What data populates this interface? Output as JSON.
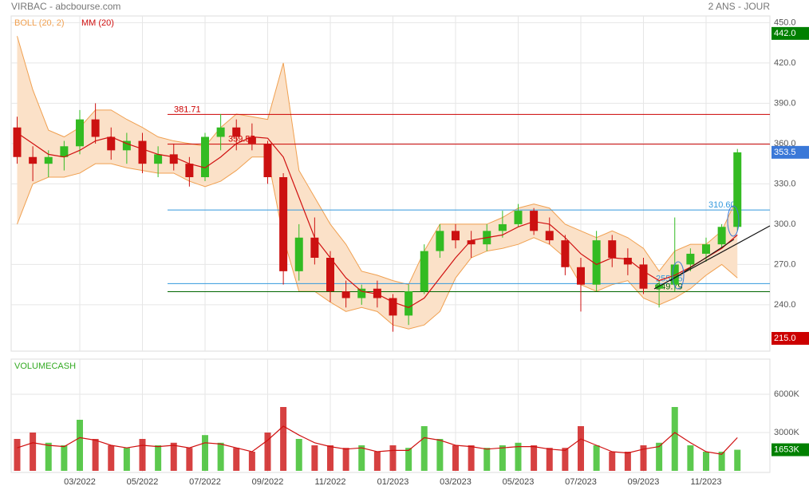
{
  "header": {
    "title": "VIRBAC - abcbourse.com",
    "period": "2 ANS - JOUR"
  },
  "chart_data": [
    {
      "type": "candlestick",
      "open": [
        372,
        350,
        345,
        350,
        358,
        378,
        365,
        355,
        362,
        345,
        352,
        345,
        335,
        365,
        372,
        365,
        360,
        335,
        265,
        290,
        275,
        250,
        245,
        252,
        245,
        232,
        250,
        280,
        295,
        288,
        285,
        295,
        300,
        310,
        295,
        288,
        268,
        255,
        288,
        275,
        270,
        252,
        255,
        270,
        278,
        285,
        298
      ],
      "high": [
        380,
        358,
        355,
        362,
        385,
        390,
        372,
        368,
        368,
        358,
        360,
        350,
        368,
        382,
        378,
        375,
        362,
        338,
        300,
        305,
        280,
        258,
        255,
        258,
        248,
        255,
        285,
        300,
        300,
        295,
        300,
        310,
        315,
        312,
        305,
        292,
        275,
        295,
        292,
        282,
        275,
        258,
        305,
        282,
        290,
        300,
        356
      ],
      "low": [
        345,
        332,
        335,
        340,
        352,
        360,
        348,
        345,
        338,
        335,
        340,
        328,
        332,
        355,
        355,
        355,
        330,
        255,
        258,
        270,
        242,
        238,
        240,
        238,
        220,
        225,
        248,
        275,
        282,
        275,
        280,
        290,
        298,
        292,
        285,
        262,
        235,
        250,
        268,
        262,
        248,
        238,
        250,
        265,
        272,
        282,
        295
      ],
      "close": [
        350,
        345,
        350,
        358,
        378,
        365,
        355,
        362,
        345,
        352,
        345,
        335,
        365,
        372,
        365,
        360,
        335,
        265,
        290,
        275,
        250,
        245,
        252,
        245,
        232,
        250,
        280,
        295,
        288,
        285,
        295,
        300,
        310,
        295,
        288,
        268,
        255,
        288,
        275,
        270,
        252,
        255,
        270,
        278,
        285,
        298,
        353.5
      ],
      "up_color": "#33bb22",
      "down_color": "#cc1111",
      "bollinger": {
        "name": "BOLL (20, 2)",
        "color": "#f0a050",
        "fill": "#fbe1c8",
        "upper": [
          440,
          400,
          370,
          365,
          372,
          385,
          385,
          378,
          372,
          365,
          362,
          360,
          358,
          372,
          382,
          380,
          378,
          420,
          340,
          320,
          300,
          285,
          265,
          262,
          258,
          255,
          280,
          300,
          300,
          300,
          300,
          305,
          312,
          315,
          312,
          300,
          295,
          290,
          295,
          290,
          282,
          265,
          280,
          285,
          285,
          295,
          320
        ],
        "lower": [
          300,
          330,
          335,
          335,
          338,
          345,
          345,
          342,
          340,
          338,
          338,
          332,
          328,
          332,
          340,
          350,
          350,
          290,
          250,
          250,
          242,
          235,
          238,
          235,
          225,
          222,
          225,
          235,
          260,
          275,
          280,
          282,
          285,
          290,
          285,
          275,
          255,
          250,
          255,
          258,
          245,
          240,
          245,
          252,
          262,
          270,
          260
        ]
      },
      "ma": {
        "name": "MM (20)",
        "color": "#d01010",
        "values": [
          368,
          360,
          352,
          350,
          355,
          362,
          365,
          360,
          356,
          352,
          350,
          345,
          342,
          350,
          360,
          365,
          364,
          350,
          320,
          290,
          275,
          260,
          250,
          248,
          242,
          238,
          245,
          260,
          275,
          288,
          290,
          292,
          298,
          302,
          300,
          290,
          278,
          270,
          275,
          274,
          265,
          258,
          262,
          268,
          275,
          282,
          292
        ]
      },
      "levels": [
        {
          "value": 381.71,
          "color": "#cc0000"
        },
        {
          "value": 359.57,
          "color": "#cc0000"
        },
        {
          "value": 310.6,
          "label": "310.60",
          "color": "#3399dd"
        },
        {
          "value": 255.75,
          "color": "#3399dd"
        },
        {
          "value": 249.79,
          "color": "#006600"
        }
      ],
      "price_tags": [
        {
          "value": 442,
          "label": "442.0",
          "color": "#008000"
        },
        {
          "value": 353.5,
          "label": "353.5",
          "color": "#3a78d8"
        },
        {
          "value": 215,
          "label": "215.0",
          "color": "#cc0000"
        }
      ],
      "ylim": [
        205.5,
        455
      ],
      "yticks": [
        {
          "value": 450,
          "label": "450.0"
        },
        {
          "value": 420,
          "label": "420.0"
        },
        {
          "value": 390,
          "label": "390.0"
        },
        {
          "value": 360,
          "label": "360.0"
        },
        {
          "value": 330,
          "label": "330.0"
        },
        {
          "value": 300,
          "label": "300.0"
        },
        {
          "value": 270,
          "label": "270.0"
        },
        {
          "value": 240,
          "label": "240.0"
        }
      ],
      "grid": true
    },
    {
      "type": "bar",
      "title": "VOLUMECASH",
      "categories": [
        null,
        null,
        null,
        null,
        "03/2022",
        null,
        null,
        null,
        "05/2022",
        null,
        null,
        null,
        "07/2022",
        null,
        null,
        null,
        "09/2022",
        null,
        null,
        null,
        "11/2022",
        null,
        null,
        null,
        "01/2023",
        null,
        null,
        null,
        "03/2023",
        null,
        null,
        null,
        "05/2023",
        null,
        null,
        null,
        "07/2023",
        null,
        null,
        null,
        "09/2023",
        null,
        null,
        null,
        "11/2023",
        null,
        null
      ],
      "values": [
        2500,
        3000,
        2200,
        2000,
        4000,
        2500,
        2000,
        1800,
        2500,
        2000,
        2200,
        1800,
        2800,
        2200,
        1800,
        1500,
        3000,
        5000,
        2500,
        2000,
        2000,
        1800,
        2000,
        1500,
        2000,
        1800,
        3500,
        2500,
        2000,
        2000,
        1800,
        2000,
        2200,
        2000,
        1800,
        1800,
        3500,
        2000,
        1500,
        1500,
        2000,
        2200,
        5000,
        2000,
        1500,
        1500,
        1653
      ],
      "ma": {
        "color": "#d01010",
        "values": [
          1800,
          2200,
          2000,
          1900,
          2600,
          2400,
          2000,
          1800,
          2000,
          1900,
          2000,
          1800,
          2200,
          2100,
          1800,
          1500,
          2400,
          3500,
          2800,
          2200,
          1900,
          1700,
          1800,
          1500,
          1600,
          1600,
          2600,
          2400,
          2000,
          1900,
          1700,
          1800,
          1900,
          1900,
          1700,
          1600,
          2500,
          2000,
          1500,
          1400,
          1700,
          1900,
          3000,
          2200,
          1500,
          1300,
          2600
        ]
      },
      "last_tag": {
        "value": 1653,
        "label": "1653K",
        "color": "#008000"
      },
      "ylim": [
        0,
        8750
      ],
      "yticks": [
        {
          "value": 6000,
          "label": "6000K"
        },
        {
          "value": 3000,
          "label": "3000K"
        }
      ],
      "grid": true
    }
  ]
}
